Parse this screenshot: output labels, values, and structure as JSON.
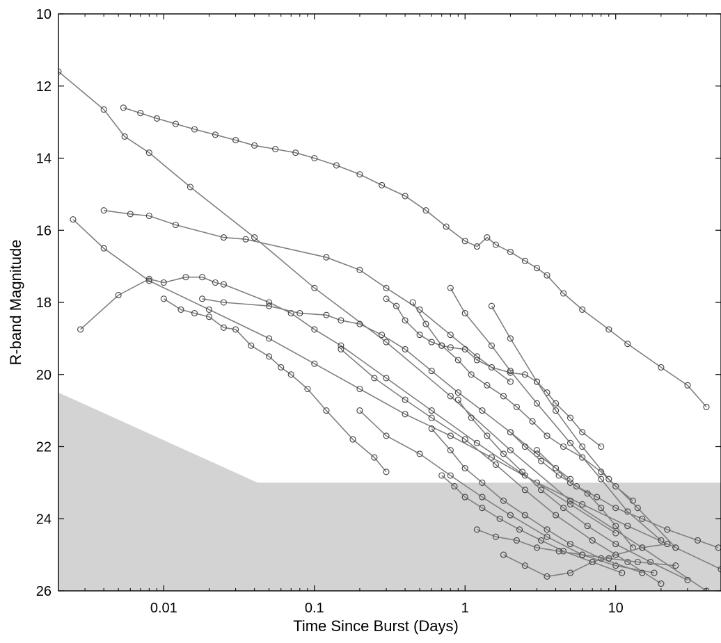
{
  "chart_data": {
    "type": "scatter",
    "title": "",
    "xlabel": "Time Since Burst  (Days)",
    "ylabel": "R-band Magnitude",
    "x_scale": "log",
    "xlim": [
      0.002,
      50
    ],
    "ylim": [
      26,
      10
    ],
    "y_inverted": true,
    "x_ticks": [
      0.01,
      0.1,
      1,
      10
    ],
    "x_tick_labels": [
      "0.01",
      "0.1",
      "1",
      "10"
    ],
    "y_ticks": [
      10,
      12,
      14,
      16,
      18,
      20,
      22,
      24,
      26
    ],
    "y_tick_labels": [
      "10",
      "12",
      "14",
      "16",
      "18",
      "20",
      "22",
      "24",
      "26"
    ],
    "grid": false,
    "colors": {
      "lines": "#7f7f7f",
      "markers": "#404040",
      "shade": "#d3d3d3",
      "axes": "#000000"
    },
    "shaded_limit_region": {
      "description": "shaded area below detection limit",
      "boundary": [
        [
          0.002,
          20.5
        ],
        [
          0.042,
          23.0
        ],
        [
          50,
          23.0
        ]
      ]
    },
    "series": [
      {
        "x": [
          0.0054,
          0.007,
          0.009,
          0.012,
          0.016,
          0.022,
          0.03,
          0.04,
          0.055,
          0.075,
          0.1,
          0.14,
          0.2,
          0.28,
          0.4,
          0.55,
          0.75,
          1.0,
          1.2,
          1.4,
          1.6,
          2.0,
          2.5,
          3.0,
          3.5,
          4.5,
          6.0,
          9.0,
          12.0,
          20.0,
          30.0,
          40.0
        ],
        "y": [
          12.6,
          12.75,
          12.9,
          13.05,
          13.2,
          13.35,
          13.5,
          13.65,
          13.75,
          13.85,
          14.0,
          14.2,
          14.45,
          14.75,
          15.05,
          15.45,
          15.9,
          16.3,
          16.45,
          16.2,
          16.4,
          16.6,
          16.85,
          17.05,
          17.25,
          17.75,
          18.2,
          18.75,
          19.15,
          19.8,
          20.3,
          20.9
        ]
      },
      {
        "x": [
          0.0025,
          0.004,
          0.008,
          0.02,
          0.05,
          0.1,
          0.2,
          0.4,
          0.8,
          1.5,
          3.0,
          6.0,
          12.0,
          25.0,
          50.0
        ],
        "y": [
          15.7,
          16.5,
          17.4,
          18.2,
          19.0,
          19.7,
          20.4,
          21.1,
          21.7,
          22.3,
          23.0,
          23.6,
          24.2,
          24.8,
          25.4
        ]
      },
      {
        "x": [
          0.002,
          0.004,
          0.0055,
          0.008,
          0.015,
          0.04,
          0.1,
          0.3,
          0.8,
          2.0,
          5.0,
          15.0,
          40.0
        ],
        "y": [
          11.6,
          12.65,
          13.4,
          13.85,
          14.8,
          16.2,
          17.6,
          19.1,
          20.6,
          22.1,
          23.5,
          24.8,
          26.0
        ]
      },
      {
        "x": [
          0.004,
          0.006,
          0.008,
          0.012,
          0.025,
          0.035,
          0.12,
          0.2,
          0.3,
          0.5,
          0.8,
          1.2,
          2.0
        ],
        "y": [
          15.45,
          15.55,
          15.6,
          15.85,
          16.2,
          16.25,
          16.75,
          17.1,
          17.6,
          18.2,
          18.9,
          19.5,
          20.2
        ]
      },
      {
        "x": [
          0.0028,
          0.005,
          0.008,
          0.01,
          0.014,
          0.018,
          0.022,
          0.025,
          0.05,
          0.07,
          0.1,
          0.15,
          0.3,
          0.6,
          1.2,
          2.5,
          5.0,
          10.0
        ],
        "y": [
          18.75,
          17.8,
          17.35,
          17.45,
          17.3,
          17.3,
          17.45,
          17.5,
          18.0,
          18.3,
          18.75,
          19.2,
          20.1,
          21.0,
          21.9,
          22.8,
          23.6,
          24.4
        ]
      },
      {
        "x": [
          0.01,
          0.013,
          0.016,
          0.02,
          0.025,
          0.03,
          0.038,
          0.05,
          0.06,
          0.07,
          0.09,
          0.12,
          0.18,
          0.25,
          0.3
        ],
        "y": [
          17.9,
          18.2,
          18.3,
          18.4,
          18.7,
          18.75,
          19.2,
          19.5,
          19.8,
          20.0,
          20.4,
          21.0,
          21.8,
          22.3,
          22.7
        ]
      },
      {
        "x": [
          0.018,
          0.025,
          0.05,
          0.08,
          0.12,
          0.15,
          0.2,
          0.28,
          0.4,
          0.6,
          0.9,
          1.3,
          2.0,
          3.0,
          5.0
        ],
        "y": [
          17.9,
          18.0,
          18.1,
          18.3,
          18.35,
          18.5,
          18.6,
          18.9,
          19.3,
          19.9,
          20.5,
          21.0,
          21.6,
          22.2,
          22.9
        ]
      },
      {
        "x": [
          0.3,
          0.35,
          0.4,
          0.5,
          0.6,
          0.7,
          0.8,
          1.0,
          1.2,
          1.5,
          2.0,
          2.5,
          3.0,
          3.5,
          4.0,
          5.0,
          6.0,
          8.0
        ],
        "y": [
          17.9,
          18.1,
          18.5,
          18.9,
          19.1,
          19.2,
          19.25,
          19.3,
          19.6,
          19.8,
          19.95,
          20.0,
          20.2,
          20.5,
          20.8,
          21.2,
          21.6,
          22.0
        ]
      },
      {
        "x": [
          0.45,
          0.55,
          0.7,
          0.9,
          1.1,
          1.4,
          1.8,
          2.2,
          2.8,
          3.5,
          4.5,
          6.0,
          8.0,
          10.0,
          13.0
        ],
        "y": [
          18.0,
          18.6,
          19.2,
          19.6,
          20.0,
          20.3,
          20.6,
          20.9,
          21.3,
          21.7,
          22.0,
          22.3,
          22.7,
          23.1,
          23.5
        ]
      },
      {
        "x": [
          0.8,
          1.0,
          1.5,
          2.0,
          3.0,
          5.0,
          8.0,
          12.0,
          20.0
        ],
        "y": [
          17.6,
          18.3,
          19.2,
          19.9,
          20.8,
          21.9,
          22.9,
          23.8,
          24.6
        ]
      },
      {
        "x": [
          1.5,
          2.0,
          3.0,
          4.0,
          6.0,
          9.0,
          14.0,
          25.0
        ],
        "y": [
          18.1,
          19.0,
          20.2,
          21.0,
          22.0,
          22.9,
          23.7,
          24.8
        ]
      },
      {
        "x": [
          0.2,
          0.3,
          0.5,
          0.8,
          1.3,
          2.0,
          3.5,
          6.0,
          10.0,
          18.0
        ],
        "y": [
          21.0,
          21.7,
          22.2,
          22.8,
          23.4,
          23.9,
          24.5,
          25.0,
          25.3,
          25.5
        ]
      },
      {
        "x": [
          0.15,
          0.25,
          0.4,
          0.6,
          1.0,
          1.6,
          2.5,
          4.0,
          7.0,
          12.0,
          20.0
        ],
        "y": [
          19.3,
          20.1,
          20.7,
          21.2,
          21.8,
          22.5,
          23.2,
          23.9,
          24.6,
          25.2,
          25.8
        ]
      },
      {
        "x": [
          0.6,
          0.8,
          1.0,
          1.3,
          1.8,
          2.5,
          3.5,
          5.0,
          8.0,
          15.0
        ],
        "y": [
          21.5,
          22.1,
          22.6,
          23.0,
          23.5,
          23.9,
          24.3,
          24.7,
          25.1,
          25.5
        ]
      },
      {
        "x": [
          0.9,
          1.1,
          1.4,
          1.8,
          2.4,
          3.2,
          4.5,
          6.5,
          10.0,
          17.0,
          30.0
        ],
        "y": [
          20.7,
          21.2,
          21.7,
          22.2,
          22.7,
          23.2,
          23.7,
          24.2,
          24.7,
          25.2,
          25.7
        ]
      },
      {
        "x": [
          0.7,
          0.85,
          1.0,
          1.3,
          1.7,
          2.3,
          3.2,
          4.5,
          7.0,
          11.0
        ],
        "y": [
          22.8,
          23.1,
          23.4,
          23.7,
          24.0,
          24.3,
          24.6,
          24.9,
          25.2,
          25.5
        ]
      },
      {
        "x": [
          2.0,
          2.5,
          3.2,
          4.2,
          5.5,
          7.5,
          10.0,
          15.0,
          22.0,
          35.0,
          48.0
        ],
        "y": [
          21.6,
          22.0,
          22.4,
          22.8,
          23.1,
          23.4,
          23.7,
          24.0,
          24.3,
          24.6,
          24.8
        ]
      },
      {
        "x": [
          3.0,
          4.0,
          5.0,
          6.5,
          8.0,
          10.0,
          13.0
        ],
        "y": [
          22.1,
          22.6,
          23.0,
          23.3,
          23.7,
          24.2,
          24.8
        ]
      },
      {
        "x": [
          1.2,
          1.6,
          2.2,
          3.0,
          4.2,
          6.0,
          9.0,
          14.0,
          25.0
        ],
        "y": [
          24.3,
          24.5,
          24.6,
          24.8,
          24.9,
          25.0,
          25.1,
          25.2,
          25.3
        ]
      },
      {
        "x": [
          1.8,
          2.5,
          3.5,
          5.0,
          7.0,
          10.0,
          15.0,
          22.0
        ],
        "y": [
          25.0,
          25.3,
          25.6,
          25.5,
          25.2,
          25.0,
          24.8,
          24.7
        ]
      }
    ]
  }
}
